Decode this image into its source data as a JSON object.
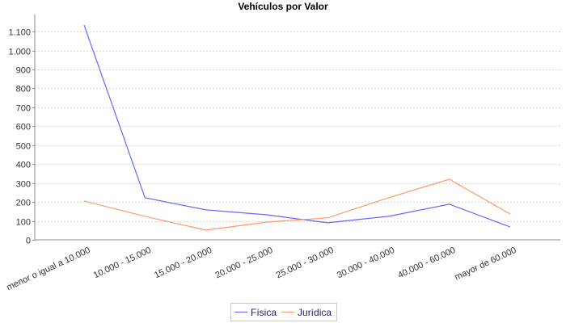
{
  "chart_data": {
    "type": "line",
    "title": "Vehículos por Valor",
    "xlabel": "",
    "ylabel": "",
    "categories": [
      "menor o igual a 10.000",
      "10.000 - 15.000",
      "15.000 - 20.000",
      "20.000 - 25.000",
      "25.000 - 30.000",
      "30.000 - 40.000",
      "40.000 - 60.000",
      "mayor de 60.000"
    ],
    "series": [
      {
        "name": "Física",
        "color": "#6666ff",
        "values": [
          1134,
          222,
          158,
          132,
          90,
          124,
          188,
          68
        ]
      },
      {
        "name": "Jurídica",
        "color": "#ff9966",
        "values": [
          205,
          124,
          51,
          94,
          116,
          222,
          320,
          136
        ]
      }
    ],
    "ylim": [
      0,
      1190
    ],
    "yticks": [
      0,
      100,
      200,
      300,
      400,
      500,
      600,
      700,
      800,
      900,
      1000,
      1100
    ],
    "ytick_labels": [
      "0",
      "100",
      "200",
      "300",
      "400",
      "500",
      "600",
      "700",
      "800",
      "900",
      "1.000",
      "1.100"
    ],
    "grid": true,
    "legend_position": "bottom"
  },
  "legend": {
    "items": [
      {
        "label": "Física",
        "color": "#6666ff"
      },
      {
        "label": "Jurídica",
        "color": "#ff9966"
      }
    ]
  }
}
